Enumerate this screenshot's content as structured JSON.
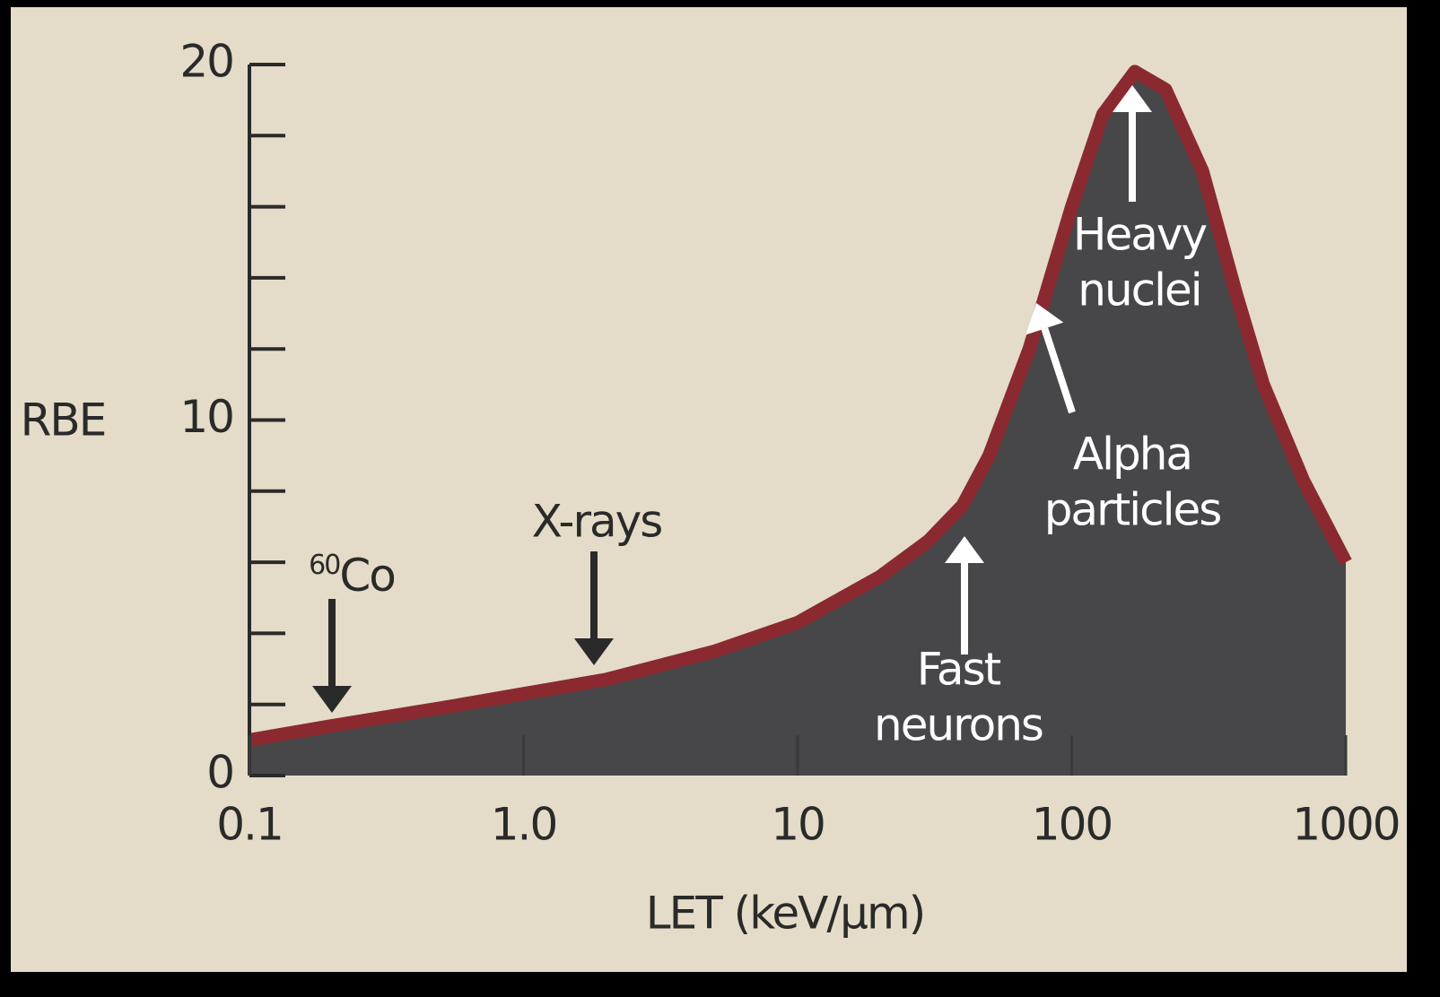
{
  "chart_data": {
    "type": "area",
    "x_label": "LET (keV/μm)",
    "y_label": "RBE",
    "x": [
      0.1,
      0.2,
      0.5,
      1,
      2,
      5,
      10,
      20,
      30,
      40,
      50,
      70,
      100,
      130,
      170,
      220,
      300,
      400,
      500,
      700,
      1000
    ],
    "series": [
      {
        "fill": "#47474a",
        "color": "#8a2a30",
        "values": [
          1.0,
          1.4,
          1.9,
          2.3,
          2.7,
          3.5,
          4.3,
          5.6,
          6.6,
          7.6,
          9,
          12,
          16,
          18.6,
          19.8,
          19.3,
          17,
          13.5,
          11,
          8.3,
          6.0
        ]
      }
    ],
    "xlim": [
      0.1,
      1000
    ],
    "xscale": "log",
    "xticks": [
      0.1,
      {
        "value": 1,
        "label": "1.0"
      },
      10,
      100,
      1000
    ],
    "ylim": [
      0,
      20
    ],
    "yticks": [
      0,
      10,
      20
    ],
    "yminorticks": [
      2,
      4,
      6,
      8,
      12,
      14,
      16,
      18
    ],
    "annotations": [
      {
        "sup": "60",
        "text": "Co"
      },
      {
        "lines": [
          "X-rays"
        ]
      },
      {
        "lines": [
          "Fast",
          "neurons"
        ]
      },
      {
        "lines": [
          "Alpha",
          "particles"
        ]
      },
      {
        "lines": [
          "Heavy",
          "nuclei"
        ]
      }
    ]
  }
}
